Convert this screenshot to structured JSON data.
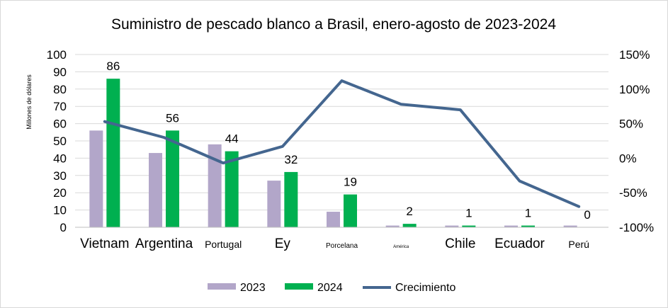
{
  "chart_data": {
    "type": "bar",
    "title": "Suministro de pescado blanco a Brasil, enero-agosto de 2023-2024",
    "ylabel": "Millones de dólares",
    "ylim": [
      0,
      100
    ],
    "yticks": [
      "0",
      "10",
      "20",
      "30",
      "40",
      "50",
      "60",
      "70",
      "80",
      "90",
      "100"
    ],
    "y2lim": [
      -100,
      150
    ],
    "y2ticks": [
      "-100%",
      "-50%",
      "0%",
      "50%",
      "100%",
      "150%"
    ],
    "categories": [
      "Vietnam",
      "Argentina",
      "Portugal",
      "Ey",
      "Porcelana",
      "América",
      "Chile",
      "Ecuador",
      "Perú"
    ],
    "category_font_sizes": [
      19,
      19,
      14,
      19,
      10,
      6,
      19,
      19,
      14
    ],
    "series": [
      {
        "name": "2023",
        "color": "#b2a6c9",
        "values": [
          56,
          43,
          48,
          27,
          9,
          1,
          1,
          1,
          1
        ]
      },
      {
        "name": "2024",
        "color": "#00b050",
        "values": [
          86,
          56,
          44,
          32,
          19,
          2,
          1,
          1,
          0
        ],
        "data_labels": [
          "86",
          "56",
          "44",
          "32",
          "19",
          "2",
          "1",
          "1",
          "0"
        ]
      }
    ],
    "line": {
      "name": "Crecimiento",
      "color": "#44668f",
      "axis": "secondary",
      "values": [
        53,
        30,
        -7,
        17,
        112,
        78,
        70,
        -33,
        -70
      ]
    },
    "legend": [
      "2023",
      "2024",
      "Crecimiento"
    ],
    "legend_position": "bottom",
    "grid": true
  }
}
